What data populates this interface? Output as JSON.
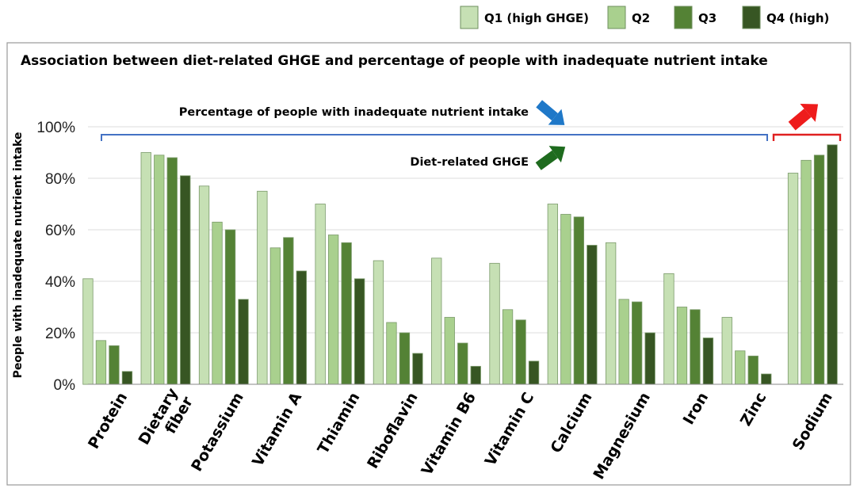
{
  "chart_data": {
    "type": "bar",
    "title": "Association between diet-related GHGE and percentage of people with inadequate nutrient intake",
    "ylabel": "People with inadequate nutrient intake",
    "xlabel": "",
    "ylim": [
      0,
      100
    ],
    "yticks": [
      "0%",
      "20%",
      "40%",
      "60%",
      "80%",
      "100%"
    ],
    "grid": true,
    "legend_position": "top-right",
    "categories": [
      "Protein",
      "Dietary fiber",
      "Potassium",
      "Vitamin A",
      "Thiamin",
      "Riboflavin",
      "Vitamin B6",
      "Vitamin C",
      "Calcium",
      "Magnesium",
      "Iron",
      "Zinc",
      "Sodium"
    ],
    "category_lines": [
      [
        "Protein"
      ],
      [
        "Dietary",
        "fiber"
      ],
      [
        "Potassium"
      ],
      [
        "Vitamin A"
      ],
      [
        "Thiamin"
      ],
      [
        "Riboflavin"
      ],
      [
        "Vitamin B6"
      ],
      [
        "Vitamin C"
      ],
      [
        "Calcium"
      ],
      [
        "Magnesium"
      ],
      [
        "Iron"
      ],
      [
        "Zinc"
      ],
      [
        "Sodium"
      ]
    ],
    "series": [
      {
        "name": "Q1 (high GHGE)",
        "color": "#c6e0b4",
        "values": [
          41,
          90,
          77,
          75,
          70,
          48,
          49,
          47,
          70,
          55,
          43,
          26,
          82
        ]
      },
      {
        "name": "Q2",
        "color": "#a9d08e",
        "values": [
          17,
          89,
          63,
          53,
          58,
          24,
          26,
          29,
          66,
          33,
          30,
          13,
          87
        ]
      },
      {
        "name": "Q3",
        "color": "#548235",
        "values": [
          15,
          88,
          60,
          57,
          55,
          20,
          16,
          25,
          65,
          32,
          29,
          11,
          89
        ]
      },
      {
        "name": "Q4 (high)",
        "color": "#375623",
        "values": [
          5,
          81,
          33,
          44,
          41,
          12,
          7,
          9,
          54,
          20,
          18,
          4,
          93
        ]
      }
    ],
    "annotations": [
      {
        "id": "pct",
        "text": "Percentage of people with inadequate nutrient intake",
        "arrow": "down",
        "arrow_color": "#1f78c8",
        "bracket_color": "#4472c4"
      },
      {
        "id": "ghge",
        "text": "Diet-related GHGE",
        "arrow": "up",
        "arrow_color": "#1e6b1e"
      },
      {
        "id": "sodium",
        "text": "",
        "arrow": "up",
        "arrow_color": "#ee1c1c",
        "bracket_color": "#e02020"
      }
    ]
  }
}
